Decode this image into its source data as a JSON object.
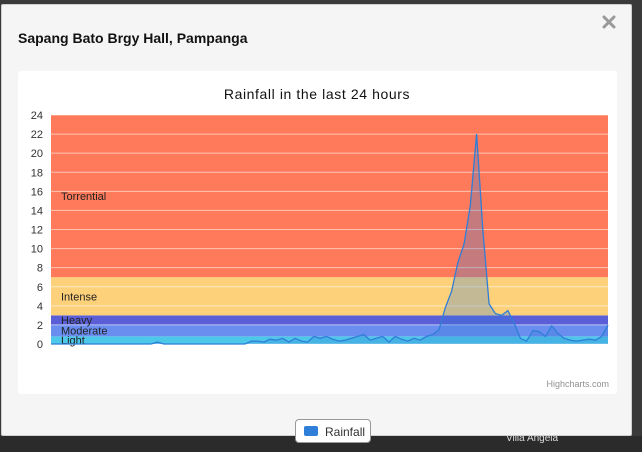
{
  "modal": {
    "title": "Sapang Bato Brgy Hall, Pampanga",
    "close_glyph": "✕",
    "close_icon": "close-icon"
  },
  "backdrop": {
    "partial_text": "Villa Angela"
  },
  "chart": {
    "legend_label": "Rainfall",
    "credits": "Highcharts.com"
  },
  "colors": {
    "series": "#2f7ed8",
    "torrential": "#ff7a5a",
    "intense": "#fdd07a",
    "heavy": "#5a5fd8",
    "moderate": "#6a8df0",
    "light": "#4ec8e8"
  },
  "chart_data": {
    "type": "area",
    "title": "Rainfall in the last 24 hours",
    "xlabel": "",
    "ylabel": "",
    "ylim": [
      0,
      24
    ],
    "yticks": [
      0,
      2,
      4,
      6,
      8,
      10,
      12,
      14,
      16,
      18,
      20,
      22,
      24
    ],
    "grid": true,
    "legend": "bottom-center",
    "bands": [
      {
        "label": "Light",
        "from": 0,
        "to": 0.8,
        "color": "#4ec8e8"
      },
      {
        "label": "Moderate",
        "from": 0.8,
        "to": 2.0,
        "color": "#6a8df0"
      },
      {
        "label": "Heavy",
        "from": 2.0,
        "to": 3.0,
        "color": "#5a5fd8"
      },
      {
        "label": "Intense",
        "from": 3.0,
        "to": 7.0,
        "color": "#fdd07a"
      },
      {
        "label": "Torrential",
        "from": 7.0,
        "to": 24.0,
        "color": "#ff7a5a"
      }
    ],
    "series": [
      {
        "name": "Rainfall",
        "values": [
          0,
          0,
          0,
          0,
          0,
          0,
          0,
          0,
          0,
          0,
          0,
          0,
          0,
          0,
          0,
          0,
          0,
          0.2,
          0,
          0,
          0,
          0,
          0,
          0,
          0,
          0,
          0,
          0,
          0,
          0,
          0,
          0,
          0.3,
          0.3,
          0.2,
          0.5,
          0.4,
          0.6,
          0.2,
          0.6,
          0.3,
          0.2,
          0.8,
          0.6,
          0.8,
          0.5,
          0.3,
          0.4,
          0.6,
          0.8,
          1,
          0.4,
          0.6,
          0.8,
          0.2,
          0.8,
          0.5,
          0.3,
          0.6,
          0.4,
          0.8,
          1,
          1.5,
          3.8,
          5.5,
          8.5,
          10.5,
          14.5,
          22,
          12,
          4.2,
          3.2,
          3,
          3.5,
          2.2,
          0.6,
          0.3,
          1.4,
          1.3,
          0.8,
          1.9,
          1.1,
          0.6,
          0.4,
          0.3,
          0.4,
          0.5,
          0.4,
          0.8,
          2
        ]
      }
    ]
  }
}
